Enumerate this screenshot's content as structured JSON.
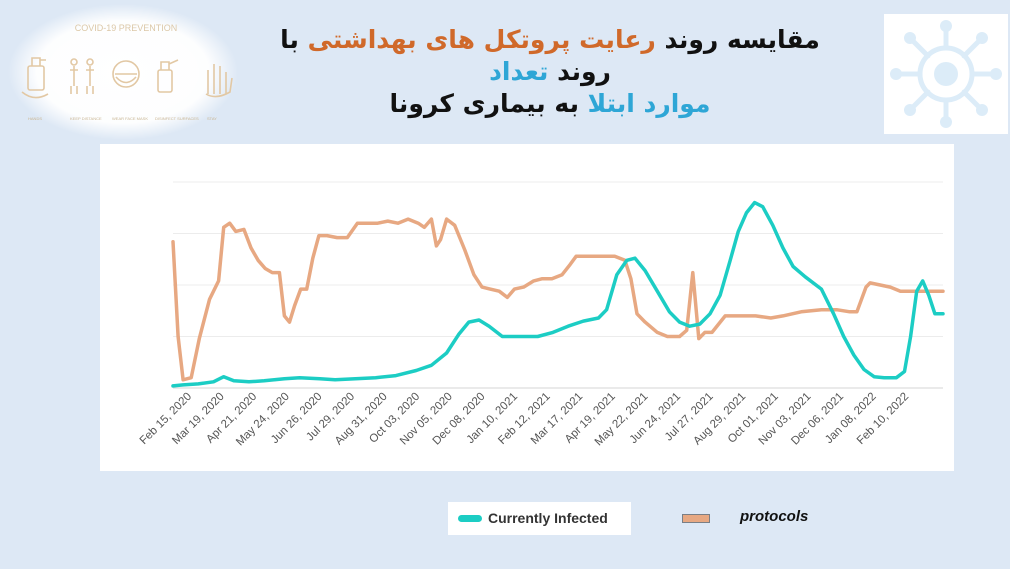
{
  "title": {
    "line1_parts": [
      {
        "text": "مقایسه روند ",
        "color": "dark"
      },
      {
        "text": "رعایت پروتکل های بهداشتی",
        "color": "orange"
      },
      {
        "text": " با روند ",
        "color": "dark"
      },
      {
        "text": "تعداد",
        "color": "blue"
      }
    ],
    "line2_parts": [
      {
        "text": "موارد ابتلا",
        "color": "blue"
      },
      {
        "text": " به بیماری کرونا",
        "color": "dark"
      }
    ]
  },
  "decoration": {
    "left_image_heading": "COVID-19 PREVENTION",
    "left_icon_names": [
      "sanitizer-icon",
      "social-distance-icon",
      "face-mask-icon",
      "disinfect-spray-icon",
      "hand-icon"
    ],
    "right_image_icon": "virus-icon"
  },
  "colors": {
    "infected": "#1ccdc4",
    "protocols": "#e7a882",
    "background": "#dde8f5",
    "title_orange": "#d0692a",
    "title_blue": "#2ea6d6"
  },
  "chart_data": {
    "type": "line",
    "x_tick_labels": [
      "Feb 15, 2020",
      "Mar 19, 2020",
      "Apr 21, 2020",
      "May 24, 2020",
      "Jun 26, 2020",
      "Jul 29, 2020",
      "Aug 31, 2020",
      "Oct 03, 2020",
      "Nov 05, 2020",
      "Dec 08, 2020",
      "Jan 10, 2021",
      "Feb 12, 2021",
      "Mar 17, 2021",
      "Apr 19, 2021",
      "May 22, 2021",
      "Jun 24, 2021",
      "Jul 27, 2021",
      "Aug 29, 2021",
      "Oct 01, 2021",
      "Nov 03, 2021",
      "Dec 06, 2021",
      "Jan 08, 2022",
      "Feb 10, 2022"
    ],
    "x_range": [
      0,
      760
    ],
    "y_range": [
      0,
      100
    ],
    "grid": "horizontal",
    "y_ticks_shown": false,
    "series": [
      {
        "name": "Currently Infected",
        "color": "#1ccdc4",
        "points": [
          [
            0,
            1
          ],
          [
            10,
            1.5
          ],
          [
            25,
            2
          ],
          [
            40,
            3
          ],
          [
            50,
            5.5
          ],
          [
            60,
            3.5
          ],
          [
            75,
            3
          ],
          [
            90,
            3.5
          ],
          [
            110,
            4.5
          ],
          [
            125,
            5
          ],
          [
            145,
            4.5
          ],
          [
            160,
            4
          ],
          [
            180,
            4.5
          ],
          [
            200,
            5
          ],
          [
            220,
            6
          ],
          [
            240,
            8.5
          ],
          [
            255,
            11
          ],
          [
            270,
            17
          ],
          [
            282,
            26
          ],
          [
            292,
            32
          ],
          [
            302,
            33
          ],
          [
            312,
            30
          ],
          [
            325,
            25
          ],
          [
            340,
            25
          ],
          [
            360,
            25
          ],
          [
            375,
            27
          ],
          [
            390,
            30
          ],
          [
            405,
            32.5
          ],
          [
            420,
            34
          ],
          [
            428,
            38
          ],
          [
            438,
            55
          ],
          [
            448,
            62
          ],
          [
            456,
            63
          ],
          [
            466,
            57
          ],
          [
            478,
            47
          ],
          [
            490,
            37
          ],
          [
            500,
            32
          ],
          [
            510,
            30
          ],
          [
            520,
            31
          ],
          [
            530,
            36
          ],
          [
            540,
            45
          ],
          [
            550,
            62
          ],
          [
            558,
            76
          ],
          [
            566,
            85
          ],
          [
            574,
            90
          ],
          [
            582,
            88
          ],
          [
            592,
            79
          ],
          [
            602,
            68
          ],
          [
            612,
            59
          ],
          [
            624,
            54
          ],
          [
            640,
            48
          ],
          [
            652,
            36
          ],
          [
            662,
            25
          ],
          [
            672,
            16
          ],
          [
            682,
            9
          ],
          [
            692,
            5.5
          ],
          [
            702,
            5
          ],
          [
            714,
            5
          ],
          [
            722,
            8
          ],
          [
            728,
            25
          ],
          [
            734,
            47
          ],
          [
            740,
            52
          ],
          [
            746,
            45
          ],
          [
            752,
            36
          ],
          [
            760,
            36
          ]
        ]
      },
      {
        "name": "protocols",
        "color": "#e7a882",
        "points": [
          [
            0,
            71
          ],
          [
            5,
            25
          ],
          [
            10,
            4
          ],
          [
            18,
            5
          ],
          [
            26,
            24
          ],
          [
            36,
            43
          ],
          [
            45,
            52
          ],
          [
            50,
            78
          ],
          [
            56,
            80
          ],
          [
            62,
            76
          ],
          [
            70,
            77
          ],
          [
            77,
            68
          ],
          [
            84,
            62
          ],
          [
            91,
            58
          ],
          [
            98,
            56
          ],
          [
            105,
            56
          ],
          [
            110,
            35
          ],
          [
            115,
            32
          ],
          [
            120,
            40
          ],
          [
            126,
            48
          ],
          [
            132,
            48
          ],
          [
            138,
            63
          ],
          [
            144,
            74
          ],
          [
            152,
            74
          ],
          [
            162,
            73
          ],
          [
            172,
            73
          ],
          [
            182,
            80
          ],
          [
            192,
            80
          ],
          [
            202,
            80
          ],
          [
            212,
            81
          ],
          [
            222,
            80
          ],
          [
            232,
            82
          ],
          [
            242,
            80
          ],
          [
            248,
            78
          ],
          [
            255,
            82
          ],
          [
            260,
            69
          ],
          [
            264,
            72
          ],
          [
            270,
            82
          ],
          [
            278,
            79
          ],
          [
            288,
            67
          ],
          [
            297,
            55
          ],
          [
            305,
            49
          ],
          [
            313,
            48
          ],
          [
            322,
            47
          ],
          [
            330,
            44
          ],
          [
            337,
            48
          ],
          [
            346,
            49
          ],
          [
            356,
            52
          ],
          [
            364,
            53
          ],
          [
            374,
            53
          ],
          [
            384,
            55
          ],
          [
            392,
            60
          ],
          [
            398,
            64
          ],
          [
            406,
            64
          ],
          [
            416,
            64
          ],
          [
            426,
            64
          ],
          [
            436,
            64
          ],
          [
            446,
            62
          ],
          [
            452,
            53
          ],
          [
            458,
            36
          ],
          [
            466,
            32
          ],
          [
            478,
            27
          ],
          [
            488,
            25
          ],
          [
            500,
            25
          ],
          [
            507,
            28
          ],
          [
            513,
            56
          ],
          [
            519,
            24
          ],
          [
            525,
            27
          ],
          [
            532,
            27
          ],
          [
            545,
            35
          ],
          [
            560,
            35
          ],
          [
            575,
            35
          ],
          [
            590,
            34
          ],
          [
            602,
            35
          ],
          [
            620,
            37
          ],
          [
            640,
            38
          ],
          [
            655,
            38
          ],
          [
            668,
            37
          ],
          [
            675,
            37
          ],
          [
            684,
            49
          ],
          [
            688,
            51
          ],
          [
            698,
            50
          ],
          [
            708,
            49
          ],
          [
            718,
            47
          ],
          [
            730,
            47
          ],
          [
            740,
            47
          ],
          [
            750,
            47
          ],
          [
            760,
            47
          ]
        ]
      }
    ]
  },
  "legend": {
    "infected_label": "Currently Infected",
    "protocols_label": "protocols"
  }
}
